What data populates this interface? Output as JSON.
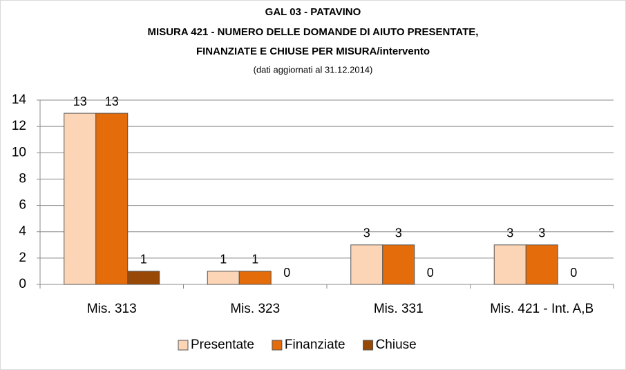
{
  "chart_data": {
    "type": "bar",
    "title": [
      "GAL 03 - PATAVINO",
      "MISURA 421  -  NUMERO DELLE DOMANDE DI AIUTO PRESENTATE,",
      "FINANZIATE E CHIUSE PER MISURA/intervento"
    ],
    "subtitle": "(dati aggiornati al 31.12.2014)",
    "categories": [
      "Mis. 313",
      "Mis. 323",
      "Mis. 331",
      "Mis. 421 - Int. A,B"
    ],
    "series": [
      {
        "name": "Presentate",
        "color": "#fbd5b5",
        "values": [
          13,
          1,
          3,
          3
        ]
      },
      {
        "name": "Finanziate",
        "color": "#e46c0a",
        "values": [
          13,
          1,
          3,
          3
        ]
      },
      {
        "name": "Chiuse",
        "color": "#984807",
        "values": [
          1,
          0,
          0,
          0
        ]
      }
    ],
    "ylim": [
      0,
      14
    ],
    "yticks": [
      0,
      2,
      4,
      6,
      8,
      10,
      12,
      14
    ],
    "grid": true,
    "legend": "bottom"
  }
}
